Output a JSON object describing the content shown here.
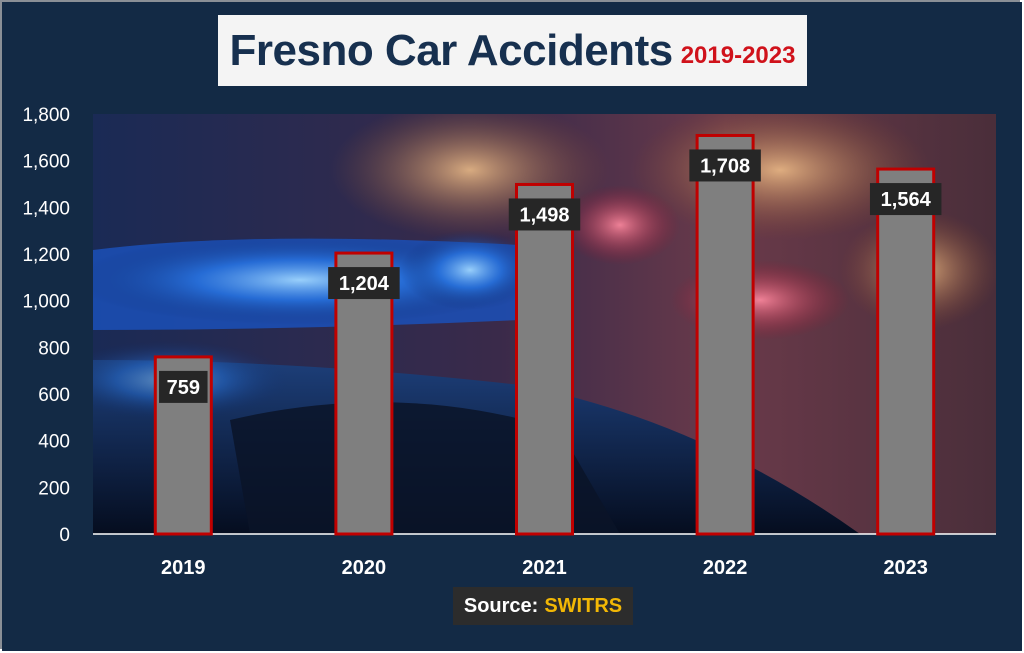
{
  "title": {
    "main": "Fresno Car Accidents",
    "sub": "2019-2023"
  },
  "source": {
    "label": "Source:",
    "value": "SWITRS"
  },
  "colors": {
    "background": "#132a45",
    "bar_fill": "#7f7f7f",
    "bar_border": "#c00000",
    "label_bg": "#262626",
    "title_text": "#17304f",
    "title_sub": "#d0121b",
    "source_value": "#f2b705"
  },
  "chart_data": {
    "type": "bar",
    "title": "Fresno Car Accidents 2019-2023",
    "categories": [
      "2019",
      "2020",
      "2021",
      "2022",
      "2023"
    ],
    "values": [
      759,
      1204,
      1498,
      1708,
      1564
    ],
    "value_labels": [
      "759",
      "1,204",
      "1,498",
      "1,708",
      "1,564"
    ],
    "xlabel": "",
    "ylabel": "",
    "ylim": [
      0,
      1800
    ],
    "yticks": [
      "0",
      "200",
      "400",
      "600",
      "800",
      "1,000",
      "1,200",
      "1,400",
      "1,600",
      "1,800"
    ],
    "ytick_values": [
      0,
      200,
      400,
      600,
      800,
      1000,
      1200,
      1400,
      1600,
      1800
    ],
    "grid": false,
    "legend": "none"
  }
}
